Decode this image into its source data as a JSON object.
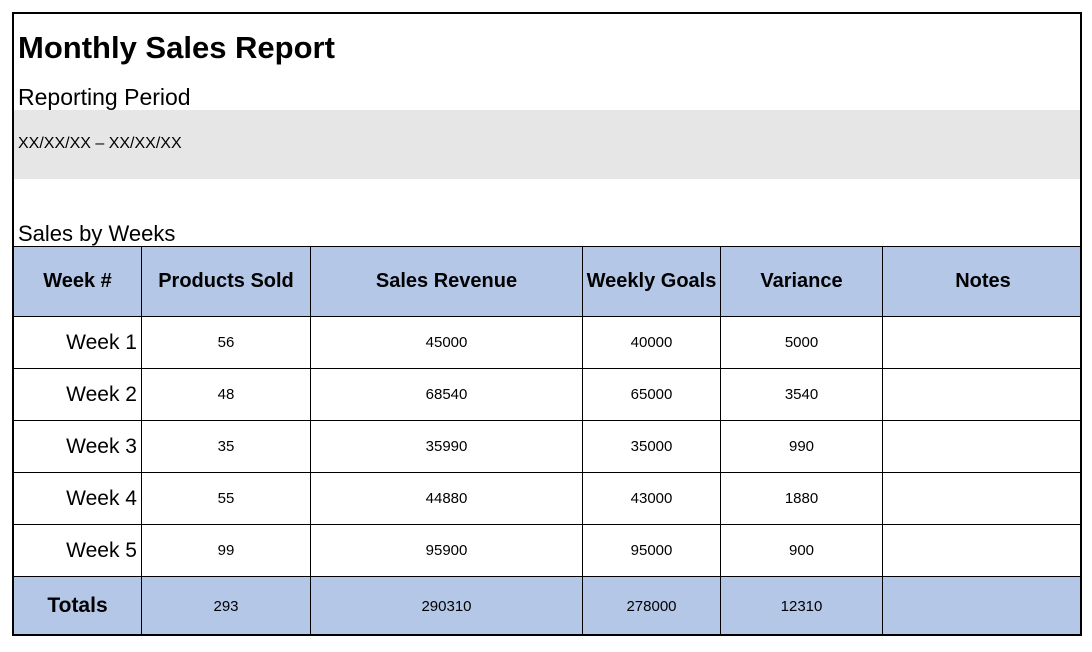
{
  "report": {
    "title": "Monthly Sales Report",
    "period_label": "Reporting Period",
    "period_value": "XX/XX/XX – XX/XX/XX",
    "section_label": "Sales by Weeks"
  },
  "table": {
    "headers": [
      "Week #",
      "Products Sold",
      "Sales Revenue",
      "Weekly Goals",
      "Variance",
      "Notes"
    ],
    "rows": [
      {
        "week": "Week 1",
        "products_sold": "56",
        "sales_revenue": "45000",
        "weekly_goals": "40000",
        "variance": "5000",
        "notes": ""
      },
      {
        "week": "Week 2",
        "products_sold": "48",
        "sales_revenue": "68540",
        "weekly_goals": "65000",
        "variance": "3540",
        "notes": ""
      },
      {
        "week": "Week 3",
        "products_sold": "35",
        "sales_revenue": "35990",
        "weekly_goals": "35000",
        "variance": "990",
        "notes": ""
      },
      {
        "week": "Week 4",
        "products_sold": "55",
        "sales_revenue": "44880",
        "weekly_goals": "43000",
        "variance": "1880",
        "notes": ""
      },
      {
        "week": "Week 5",
        "products_sold": "99",
        "sales_revenue": "95900",
        "weekly_goals": "95000",
        "variance": "900",
        "notes": ""
      }
    ],
    "totals": {
      "label": "Totals",
      "products_sold": "293",
      "sales_revenue": "290310",
      "weekly_goals": "278000",
      "variance": "12310",
      "notes": ""
    }
  },
  "colors": {
    "header_fill": "#b4c7e7",
    "period_fill": "#e6e6e6",
    "border": "#000000"
  }
}
